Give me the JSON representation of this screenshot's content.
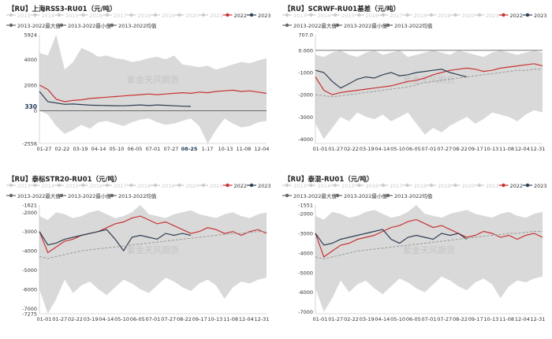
{
  "chart_data": [
    {
      "type": "line",
      "title": "【RU】上海RSS3-RU01（元/吨）",
      "xlabel": "",
      "ylabel": "",
      "legend_position": "top",
      "x_ticks": [
        "01-27",
        "02-22",
        "03-19",
        "04-14",
        "05-10",
        "06-05",
        "07-01",
        "07-27",
        "08-25",
        "1-17",
        "10-13",
        "11-08",
        "12-04"
      ],
      "y_ticks": [
        "5924",
        "4000",
        "2000",
        "0",
        "-2556"
      ],
      "ylim": [
        -2556,
        5924
      ],
      "annotations": {
        "last_value": "330",
        "last_date": "08-25",
        "watermark": "紫金天风期货"
      },
      "band": {
        "name": "2013-2022最大值/最小值",
        "upper": [
          4500,
          4300,
          5924,
          3200,
          3800,
          4900,
          4600,
          4200,
          4300,
          4100,
          4000,
          3800,
          3900,
          4100,
          4200,
          4000,
          4300,
          3600,
          3500,
          3400,
          3500,
          3200,
          3400,
          3600,
          3800,
          3700,
          3900,
          4100
        ],
        "lower": [
          0,
          -300,
          -1200,
          -1800,
          -1500,
          -1100,
          -1400,
          -900,
          -800,
          -1000,
          -1200,
          -900,
          -700,
          -600,
          -900,
          -1100,
          -1000,
          -800,
          -600,
          -1200,
          -2556,
          -1500,
          -600,
          -1000,
          -1300,
          -1200,
          -900,
          -800
        ]
      },
      "series": [
        {
          "name": "2022",
          "color": "#c83232",
          "values": [
            2000,
            1650,
            900,
            700,
            800,
            850,
            950,
            1000,
            1050,
            1100,
            1150,
            1200,
            1250,
            1300,
            1250,
            1300,
            1350,
            1400,
            1350,
            1450,
            1400,
            1500,
            1550,
            1600,
            1500,
            1550,
            1450,
            1350
          ]
        },
        {
          "name": "2023",
          "color": "#2e3e52",
          "values": [
            1500,
            700,
            600,
            500,
            520,
            480,
            430,
            420,
            400,
            390,
            380,
            420,
            450,
            400,
            450,
            420,
            380,
            350,
            330,
            null,
            null,
            null,
            null,
            null,
            null,
            null,
            null,
            null
          ]
        },
        {
          "name": "2013-2022均值",
          "color": "#888888",
          "values": [
            null,
            null,
            null,
            null,
            null,
            null,
            null,
            null,
            null,
            null,
            null,
            null,
            null,
            null,
            null,
            null,
            null,
            null,
            null,
            null,
            null,
            null,
            null,
            null,
            null,
            null,
            null,
            null
          ]
        }
      ],
      "legend": {
        "years": [
          "2013",
          "2014",
          "2015",
          "2016",
          "2017",
          "2018",
          "2019",
          "2020",
          "2021",
          "2022",
          "2023"
        ],
        "stats": [
          "2013-2022最大值",
          "2013-2022最小值",
          "2013-2022均值"
        ]
      }
    },
    {
      "type": "line",
      "title": "【RU】SCRWF-RU01基差（元/吨）",
      "xlabel": "",
      "ylabel": "",
      "legend_position": "top",
      "x_ticks": [
        "01-01",
        "01-27",
        "02-22",
        "03-19",
        "04-14",
        "05-10",
        "06-05",
        "07-01",
        "07-27",
        "08-22",
        "09-17",
        "10-13",
        "11-08",
        "12-04",
        "12-31"
      ],
      "y_ticks": [
        "707.0",
        "0.000",
        "-1000",
        "-2000",
        "-3000",
        "-4000"
      ],
      "ylim": [
        -4200,
        707
      ],
      "annotations": {
        "watermark": "紫金天风期货"
      },
      "band": {
        "name": "2013-2022最大值/最小值",
        "upper": [
          -200,
          -300,
          -100,
          0,
          -200,
          -300,
          -100,
          0,
          -200,
          -100,
          0,
          -300,
          -200,
          -100,
          0,
          -100,
          -200,
          0,
          -100,
          -200,
          -300,
          -100,
          0,
          -100,
          -200,
          -100,
          0,
          -100
        ],
        "lower": [
          -3300,
          -4000,
          -3500,
          -3000,
          -3200,
          -2800,
          -3000,
          -3100,
          -2900,
          -3200,
          -3000,
          -2800,
          -3300,
          -3800,
          -3500,
          -3700,
          -3400,
          -3200,
          -3000,
          -3300,
          -3100,
          -2800,
          -2900,
          -3000,
          -3200,
          -2900,
          -2700,
          -2800
        ]
      },
      "series": [
        {
          "name": "2022",
          "color": "#c83232",
          "values": [
            -1200,
            -1800,
            -2000,
            -1900,
            -1850,
            -1800,
            -1750,
            -1700,
            -1650,
            -1600,
            -1500,
            -1400,
            -1350,
            -1250,
            -1100,
            -1000,
            -900,
            -850,
            -800,
            -850,
            -950,
            -900,
            -800,
            -750,
            -700,
            -650,
            -600,
            -700
          ]
        },
        {
          "name": "2023",
          "color": "#2e3e52",
          "values": [
            -900,
            -1000,
            -1400,
            -1700,
            -1500,
            -1300,
            -1200,
            -1250,
            -1100,
            -1000,
            -1150,
            -1100,
            -1000,
            -950,
            -900,
            -850,
            -1000,
            -1100,
            -1200,
            null,
            null,
            null,
            null,
            null,
            null,
            null,
            null,
            null
          ]
        },
        {
          "name": "2013-2022均值",
          "color": "#999999",
          "values": [
            -2000,
            -2050,
            -2100,
            -2050,
            -2000,
            -1950,
            -1900,
            -1850,
            -1800,
            -1750,
            -1700,
            -1650,
            -1550,
            -1450,
            -1400,
            -1350,
            -1300,
            -1250,
            -1200,
            -1150,
            -1100,
            -1050,
            -1000,
            -950,
            -900,
            -900,
            -850,
            -850
          ]
        }
      ],
      "legend": {
        "years": [
          "2013",
          "2014",
          "2015",
          "2016",
          "2017",
          "2018",
          "2019",
          "2020",
          "2021",
          "2022",
          "2023"
        ],
        "stats": [
          "2013-2022最大值",
          "2013-2022最小值",
          "2013-2022均值"
        ]
      }
    },
    {
      "type": "line",
      "title": "【RU】泰标STR20-RU01（元/吨）",
      "xlabel": "",
      "ylabel": "",
      "legend_position": "top",
      "x_ticks": [
        "01-01",
        "01-27",
        "02-22",
        "03-19",
        "04-14",
        "05-10",
        "06-05",
        "07-01",
        "07-27",
        "08-22",
        "09-17",
        "10-13",
        "11-08",
        "12-04",
        "12-31"
      ],
      "y_ticks": [
        "-1621",
        "-2000",
        "-3000",
        "-4000",
        "-5000",
        "-6000",
        "-7000",
        "-7275"
      ],
      "ylim": [
        -7275,
        -1621
      ],
      "annotations": {
        "watermark": "紫金天风期货"
      },
      "band": {
        "name": "2013-2022最大值/最小值",
        "upper": [
          -2200,
          -2400,
          -2000,
          -2100,
          -2300,
          -2200,
          -2000,
          -1900,
          -2100,
          -2300,
          -2200,
          -2000,
          -1621,
          -2100,
          -2200,
          -2300,
          -2100,
          -2000,
          -1900,
          -2100,
          -2200,
          -2300,
          -2100,
          -2000,
          -2200,
          -2300,
          -2100,
          -2000
        ],
        "lower": [
          -6000,
          -7275,
          -6500,
          -5500,
          -6200,
          -5800,
          -5600,
          -6000,
          -6300,
          -5900,
          -5500,
          -5700,
          -6000,
          -6200,
          -5800,
          -5400,
          -5600,
          -5900,
          -6100,
          -5700,
          -5500,
          -5800,
          -6500,
          -5900,
          -5600,
          -5700,
          -5500,
          -5400
        ]
      },
      "series": [
        {
          "name": "2022",
          "color": "#c83232",
          "values": [
            -3000,
            -4100,
            -3800,
            -3500,
            -3400,
            -3200,
            -3100,
            -3000,
            -2800,
            -2600,
            -2500,
            -2300,
            -2200,
            -2400,
            -2600,
            -2500,
            -2700,
            -2900,
            -3100,
            -3000,
            -2800,
            -2900,
            -3100,
            -3000,
            -3200,
            -3000,
            -2900,
            -3100
          ]
        },
        {
          "name": "2023",
          "color": "#2e3e52",
          "values": [
            -3000,
            -3700,
            -3600,
            -3400,
            -3300,
            -3200,
            -3100,
            -3000,
            -2900,
            -3400,
            -4000,
            -3300,
            -3200,
            -3300,
            -3400,
            -3100,
            -3200,
            -3100,
            -3200,
            null,
            null,
            null,
            null,
            null,
            null,
            null,
            null,
            null
          ]
        },
        {
          "name": "2013-2022均值",
          "color": "#999999",
          "values": [
            -4300,
            -4400,
            -4300,
            -4200,
            -4100,
            -4000,
            -3950,
            -3900,
            -3850,
            -3800,
            -3750,
            -3700,
            -3650,
            -3600,
            -3550,
            -3500,
            -3450,
            -3400,
            -3350,
            -3300,
            -3250,
            -3200,
            -3150,
            -3100,
            -3100,
            -3050,
            -3000,
            -3000
          ]
        }
      ],
      "legend": {
        "years": [
          "2013",
          "2014",
          "2015",
          "2016",
          "2017",
          "2018",
          "2019",
          "2020",
          "2021",
          "2022",
          "2023"
        ],
        "stats": [
          "2013-2022最大值",
          "2013-2022最小值",
          "2013-2022均值"
        ]
      }
    },
    {
      "type": "line",
      "title": "【RU】泰混-RU01（元/吨）",
      "xlabel": "",
      "ylabel": "",
      "legend_position": "top",
      "x_ticks": [
        "01-01",
        "01-27",
        "02-22",
        "03-19",
        "04-14",
        "05-10",
        "06-05",
        "07-01",
        "07-27",
        "08-22",
        "09-17",
        "10-13",
        "11-08",
        "12-04",
        "12-31"
      ],
      "y_ticks": [
        "-1551",
        "-2000",
        "-3000",
        "-4000",
        "-5000",
        "-6000",
        "-7000"
      ],
      "ylim": [
        -7100,
        -1551
      ],
      "annotations": {
        "watermark": "紫金天风期货"
      },
      "band": {
        "name": "2013-2022最大值/最小值",
        "upper": [
          -2100,
          -2300,
          -1900,
          -2000,
          -2200,
          -2100,
          -1900,
          -1800,
          -2000,
          -2200,
          -2100,
          -1900,
          -1551,
          -2000,
          -2100,
          -2200,
          -2000,
          -1900,
          -1800,
          -2000,
          -2100,
          -2200,
          -2000,
          -1900,
          -2100,
          -2200,
          -2000,
          -1900
        ],
        "lower": [
          -5800,
          -7000,
          -6300,
          -5400,
          -6000,
          -5600,
          -5400,
          -5800,
          -6100,
          -5700,
          -5300,
          -5500,
          -5800,
          -6000,
          -5600,
          -5200,
          -5400,
          -5700,
          -5900,
          -5500,
          -5300,
          -5600,
          -6300,
          -5700,
          -5400,
          -5500,
          -5300,
          -5200
        ]
      },
      "series": [
        {
          "name": "2022",
          "color": "#c83232",
          "values": [
            -3000,
            -4200,
            -3900,
            -3600,
            -3500,
            -3300,
            -3200,
            -3100,
            -2900,
            -2700,
            -2600,
            -2400,
            -2300,
            -2500,
            -2700,
            -2600,
            -2800,
            -3000,
            -3200,
            -3100,
            -2900,
            -3000,
            -3200,
            -3100,
            -3300,
            -3100,
            -3000,
            -3200
          ]
        },
        {
          "name": "2023",
          "color": "#2e3e52",
          "values": [
            -3000,
            -3600,
            -3500,
            -3300,
            -3200,
            -3100,
            -3000,
            -2900,
            -2800,
            -3300,
            -3500,
            -3200,
            -3100,
            -3200,
            -3300,
            -3000,
            -3100,
            -3000,
            -3300,
            null,
            null,
            null,
            null,
            null,
            null,
            null,
            null,
            null
          ]
        },
        {
          "name": "2013-2022均值",
          "color": "#999999",
          "values": [
            -4200,
            -4300,
            -4200,
            -4100,
            -4000,
            -3900,
            -3850,
            -3800,
            -3750,
            -3700,
            -3650,
            -3600,
            -3550,
            -3500,
            -3450,
            -3400,
            -3350,
            -3300,
            -3250,
            -3200,
            -3150,
            -3100,
            -3050,
            -3000,
            -3000,
            -2950,
            -2900,
            -2900
          ]
        }
      ],
      "legend": {
        "years": [
          "2013",
          "2014",
          "2015",
          "2016",
          "2017",
          "2018",
          "2019",
          "2020",
          "2021",
          "2022",
          "2023"
        ],
        "stats": [
          "2013-2022最大值",
          "2013-2022最小值",
          "2013-2022均值"
        ]
      }
    }
  ],
  "colors": {
    "band": "#d9d9d9",
    "legend_inactive": "#cccccc",
    "red": "#c83232",
    "navy": "#2e3e52",
    "grey": "#666666",
    "axis_text": "#333333"
  }
}
